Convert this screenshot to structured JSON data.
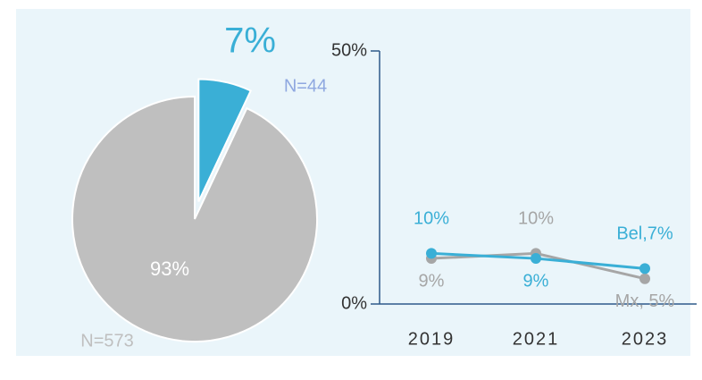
{
  "chart_data": [
    {
      "type": "pie",
      "values": [
        7,
        93
      ],
      "value_labels": [
        "7%",
        "93%"
      ],
      "n_labels": [
        "N=44",
        "N=573"
      ],
      "colors": [
        "#3aafd6",
        "#bfbfbf"
      ]
    },
    {
      "type": "line",
      "categories": [
        "2019",
        "2021",
        "2023"
      ],
      "series": [
        {
          "color": "#3aafd6",
          "values": [
            10,
            9,
            7
          ],
          "value_labels": [
            "10%",
            "9%",
            "Bel,7%"
          ]
        },
        {
          "color": "#a6a6a6",
          "values": [
            9,
            10,
            5
          ],
          "value_labels": [
            "9%",
            "10%",
            "Mx, 5%"
          ]
        }
      ],
      "ylim": [
        0,
        50
      ],
      "yticks": [
        {
          "value": 0,
          "label": "0%"
        },
        {
          "value": 50,
          "label": "50%"
        }
      ]
    }
  ]
}
